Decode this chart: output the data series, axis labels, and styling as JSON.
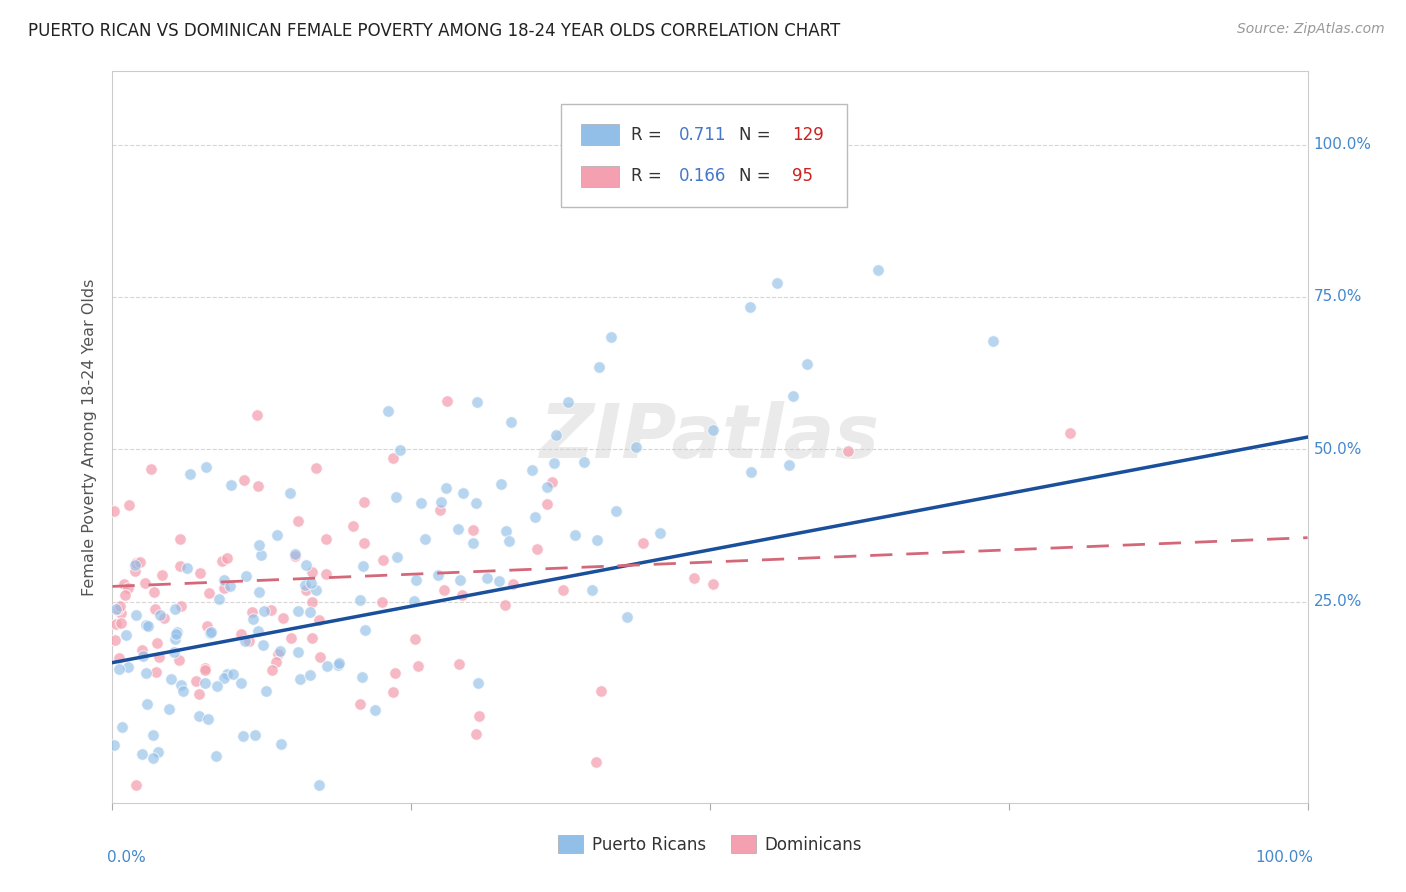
{
  "title": "PUERTO RICAN VS DOMINICAN FEMALE POVERTY AMONG 18-24 YEAR OLDS CORRELATION CHART",
  "source": "Source: ZipAtlas.com",
  "ylabel": "Female Poverty Among 18-24 Year Olds",
  "xlim": [
    0,
    1
  ],
  "ylim": [
    -0.08,
    1.12
  ],
  "xticklabels_left": "0.0%",
  "xticklabels_right": "100.0%",
  "ytick_positions": [
    0.25,
    0.5,
    0.75,
    1.0
  ],
  "ytick_labels": [
    "25.0%",
    "50.0%",
    "75.0%",
    "100.0%"
  ],
  "legend_pr_r": "0.711",
  "legend_pr_n": "129",
  "legend_dom_r": "0.166",
  "legend_dom_n": "95",
  "blue_scatter_color": "#92bfe8",
  "pink_scatter_color": "#f4a0b0",
  "blue_line_color": "#1a4f9c",
  "pink_line_color": "#d46878",
  "pr_line_start_y": 0.15,
  "pr_line_end_y": 0.52,
  "dom_line_start_y": 0.275,
  "dom_line_end_y": 0.355,
  "watermark": "ZIPatlas",
  "background_color": "#ffffff",
  "grid_color": "#cccccc",
  "tick_label_color": "#4488cc",
  "axis_label_color": "#555555",
  "title_color": "#222222",
  "source_color": "#999999",
  "legend_r_color": "#4477cc",
  "legend_n_color": "#cc2222"
}
